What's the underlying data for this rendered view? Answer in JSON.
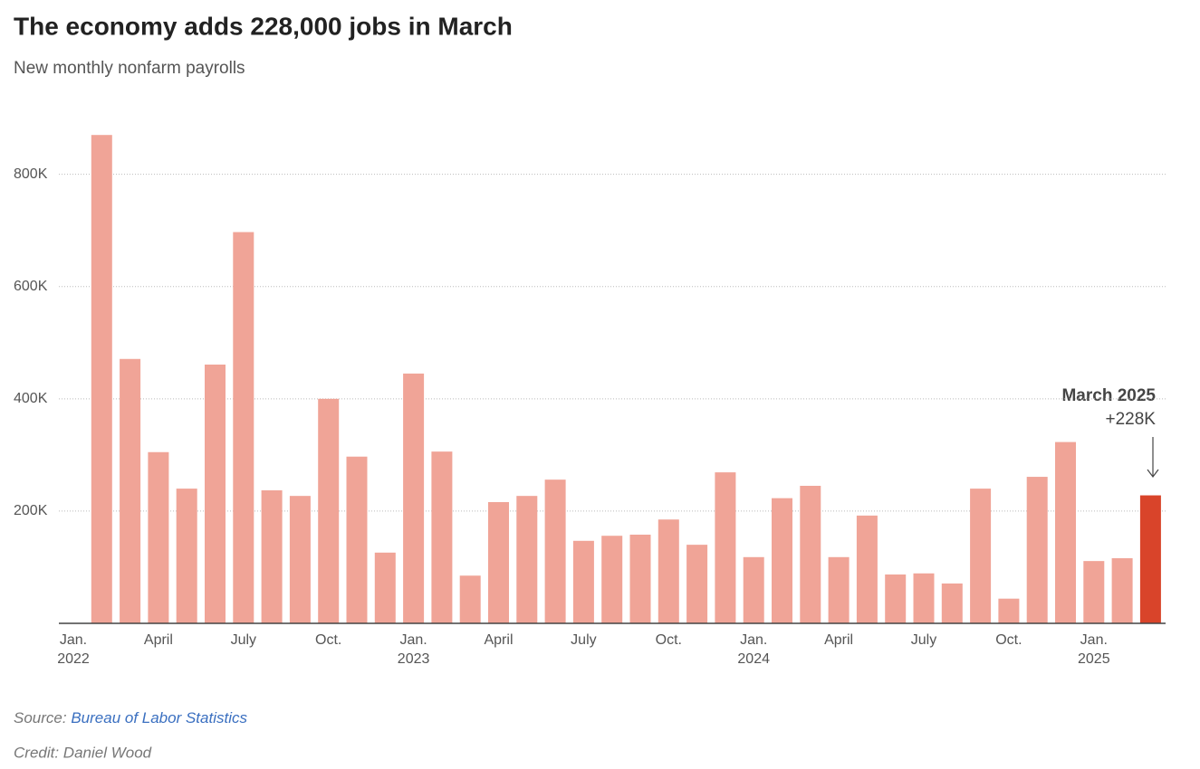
{
  "chart_data": {
    "type": "bar",
    "title": "The economy adds 228,000 jobs in March",
    "subtitle": "New monthly nonfarm payrolls",
    "categories": [
      "Jan.",
      null,
      null,
      "April",
      null,
      null,
      "July",
      null,
      null,
      "Oct.",
      null,
      null,
      "Jan.",
      null,
      null,
      "April",
      null,
      null,
      "July",
      null,
      null,
      "Oct.",
      null,
      null,
      "Jan.",
      null,
      null,
      "April",
      null,
      null,
      "July",
      null,
      null,
      "Oct.",
      null,
      null,
      "Jan.",
      null,
      null
    ],
    "years": [
      "2022",
      null,
      null,
      null,
      null,
      null,
      null,
      null,
      null,
      null,
      null,
      null,
      "2023",
      null,
      null,
      null,
      null,
      null,
      null,
      null,
      null,
      null,
      null,
      null,
      "2024",
      null,
      null,
      null,
      null,
      null,
      null,
      null,
      null,
      null,
      null,
      null,
      "2025",
      null,
      null
    ],
    "values": [
      null,
      870000,
      471000,
      305000,
      240000,
      461000,
      697000,
      237000,
      227000,
      400000,
      297000,
      126000,
      445000,
      306000,
      85000,
      216000,
      227000,
      256000,
      147000,
      156000,
      158000,
      185000,
      140000,
      269000,
      118000,
      223000,
      245000,
      118000,
      192000,
      87000,
      89000,
      71000,
      240000,
      44000,
      261000,
      323000,
      111000,
      116000,
      228000
    ],
    "color": "#f0a497",
    "highlight": {
      "index": 38,
      "color": "#d9442a"
    },
    "annotation": {
      "title": "March 2025",
      "label": "+228K"
    },
    "ylim": [
      0,
      880000
    ],
    "yticks": [
      {
        "value": 200000,
        "label": "200K"
      },
      {
        "value": 400000,
        "label": "400K"
      },
      {
        "value": 600000,
        "label": "600K"
      },
      {
        "value": 800000,
        "label": "800K"
      }
    ],
    "grid": true
  },
  "footer": {
    "source_label": "Source:",
    "source": "Bureau of Labor Statistics",
    "credit": "Credit: Daniel Wood"
  }
}
